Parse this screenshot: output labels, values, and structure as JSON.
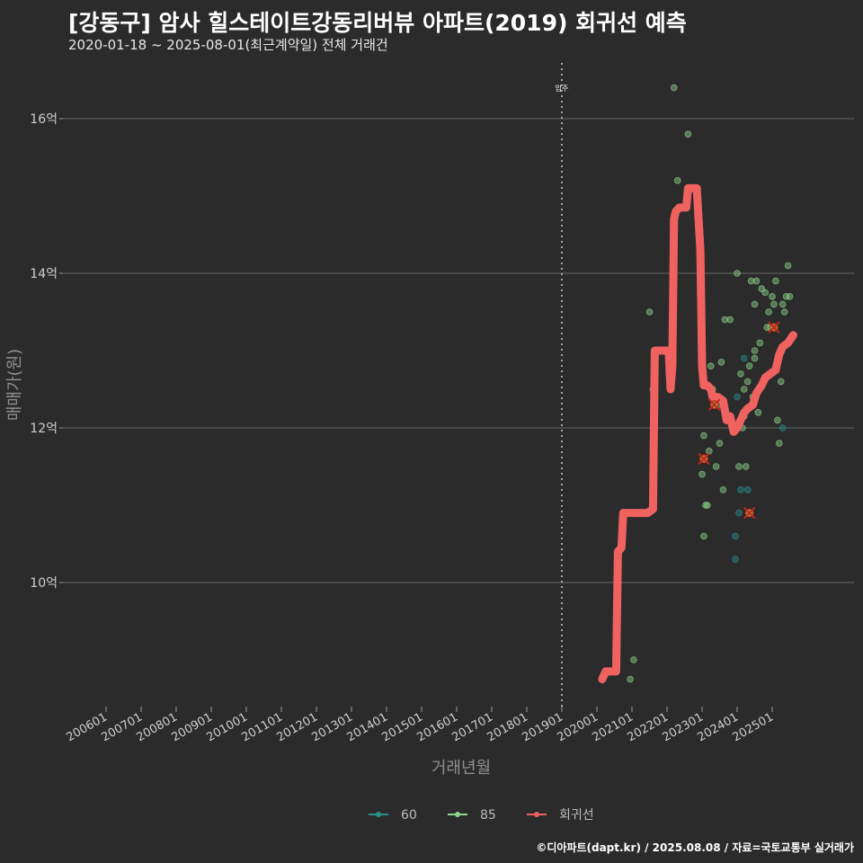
{
  "header": {
    "title": "[강동구] 암사 힐스테이트강동리버뷰 아파트(2019) 회귀선 예측",
    "subtitle": "2020-01-18 ~ 2025-08-01(최근계약일) 전체 거래건",
    "caption": "©디아파트(dapt.kr) / 2025.08.08 / 자료=국토교통부 실거래가"
  },
  "colors": {
    "background": "#2b2b2c",
    "grid": "#5a5a5a",
    "regression": "#f0625f",
    "size60": "#2a8f8f",
    "size85": "#8fd68a",
    "move_in_line": "#cccccc"
  },
  "chart_data": {
    "type": "scatter",
    "xlabel": "거래년월",
    "ylabel": "매매가(원)",
    "y_ticks": [
      {
        "value": 10,
        "label": "10억"
      },
      {
        "value": 12,
        "label": "12억"
      },
      {
        "value": 14,
        "label": "14억"
      },
      {
        "value": 16,
        "label": "16억"
      }
    ],
    "ylim": [
      8.4,
      16.7
    ],
    "xlim": [
      2005.0,
      2025.8
    ],
    "x_ticks": [
      "200601",
      "200701",
      "200801",
      "200901",
      "201001",
      "201101",
      "201201",
      "201301",
      "201401",
      "201501",
      "201601",
      "201701",
      "201801",
      "201901",
      "202001",
      "202101",
      "202201",
      "202301",
      "202401",
      "202501"
    ],
    "annotation": {
      "label": "입주",
      "x": 2019.0
    },
    "legend": {
      "position": "bottom",
      "items": [
        {
          "name": "60",
          "color": "#2a8f8f"
        },
        {
          "name": "85",
          "color": "#8fd68a"
        },
        {
          "name": "회귀선",
          "color": "#f0625f"
        }
      ]
    },
    "series": [
      {
        "name": "60",
        "points": [
          [
            2023.95,
            10.3
          ],
          [
            2023.95,
            10.6
          ],
          [
            2024.05,
            10.9
          ],
          [
            2024.1,
            11.2
          ],
          [
            2024.3,
            11.2
          ],
          [
            2024.35,
            10.9
          ],
          [
            2025.3,
            12.0
          ],
          [
            2024.0,
            12.4
          ],
          [
            2024.2,
            12.9
          ]
        ]
      },
      {
        "name": "85",
        "points": [
          [
            2020.95,
            8.75
          ],
          [
            2021.05,
            9.0
          ],
          [
            2021.5,
            13.5
          ],
          [
            2021.6,
            12.5
          ],
          [
            2022.05,
            13.0
          ],
          [
            2022.2,
            16.4
          ],
          [
            2022.3,
            15.2
          ],
          [
            2022.6,
            15.8
          ],
          [
            2023.0,
            11.4
          ],
          [
            2023.05,
            11.9
          ],
          [
            2023.1,
            11.0
          ],
          [
            2023.15,
            11.0
          ],
          [
            2023.05,
            10.6
          ],
          [
            2023.2,
            11.7
          ],
          [
            2023.25,
            12.8
          ],
          [
            2023.3,
            12.5
          ],
          [
            2023.4,
            11.5
          ],
          [
            2023.45,
            12.3
          ],
          [
            2023.5,
            11.8
          ],
          [
            2023.55,
            12.85
          ],
          [
            2023.6,
            11.2
          ],
          [
            2023.65,
            13.4
          ],
          [
            2023.8,
            13.4
          ],
          [
            2023.9,
            12.0
          ],
          [
            2024.0,
            14.0
          ],
          [
            2024.05,
            11.5
          ],
          [
            2024.1,
            12.7
          ],
          [
            2024.15,
            12.0
          ],
          [
            2024.2,
            12.5
          ],
          [
            2024.25,
            11.5
          ],
          [
            2024.3,
            12.6
          ],
          [
            2024.35,
            12.8
          ],
          [
            2024.4,
            13.9
          ],
          [
            2024.45,
            12.4
          ],
          [
            2024.5,
            13.0
          ],
          [
            2024.5,
            13.6
          ],
          [
            2024.55,
            13.9
          ],
          [
            2024.6,
            12.2
          ],
          [
            2024.65,
            13.1
          ],
          [
            2024.7,
            13.8
          ],
          [
            2024.8,
            13.75
          ],
          [
            2024.85,
            13.3
          ],
          [
            2024.9,
            13.5
          ],
          [
            2024.95,
            13.3
          ],
          [
            2025.0,
            13.7
          ],
          [
            2025.05,
            13.6
          ],
          [
            2025.1,
            13.9
          ],
          [
            2025.15,
            12.1
          ],
          [
            2025.2,
            11.8
          ],
          [
            2025.25,
            12.6
          ],
          [
            2025.3,
            13.6
          ],
          [
            2025.35,
            13.5
          ],
          [
            2025.4,
            13.7
          ],
          [
            2025.45,
            14.1
          ],
          [
            2025.5,
            13.7
          ],
          [
            2024.5,
            12.9
          ],
          [
            2024.2,
            12.15
          ]
        ]
      }
    ],
    "highlight_points": [
      [
        2023.05,
        11.6
      ],
      [
        2023.35,
        12.3
      ],
      [
        2024.35,
        10.9
      ],
      [
        2025.05,
        13.3
      ]
    ],
    "regression": [
      [
        2020.15,
        8.75
      ],
      [
        2020.25,
        8.85
      ],
      [
        2020.55,
        8.85
      ],
      [
        2020.6,
        10.4
      ],
      [
        2020.7,
        10.45
      ],
      [
        2020.75,
        10.9
      ],
      [
        2021.45,
        10.9
      ],
      [
        2021.6,
        10.95
      ],
      [
        2021.65,
        13.0
      ],
      [
        2022.05,
        13.0
      ],
      [
        2022.1,
        12.5
      ],
      [
        2022.15,
        12.8
      ],
      [
        2022.2,
        14.7
      ],
      [
        2022.25,
        14.8
      ],
      [
        2022.35,
        14.85
      ],
      [
        2022.55,
        14.85
      ],
      [
        2022.6,
        15.1
      ],
      [
        2022.85,
        15.1
      ],
      [
        2022.95,
        14.3
      ],
      [
        2023.0,
        12.8
      ],
      [
        2023.05,
        12.55
      ],
      [
        2023.15,
        12.55
      ],
      [
        2023.25,
        12.5
      ],
      [
        2023.3,
        12.4
      ],
      [
        2023.45,
        12.4
      ],
      [
        2023.6,
        12.35
      ],
      [
        2023.7,
        12.1
      ],
      [
        2023.8,
        12.15
      ],
      [
        2023.9,
        11.95
      ],
      [
        2024.0,
        12.0
      ],
      [
        2024.1,
        12.1
      ],
      [
        2024.2,
        12.2
      ],
      [
        2024.3,
        12.25
      ],
      [
        2024.45,
        12.3
      ],
      [
        2024.55,
        12.45
      ],
      [
        2024.7,
        12.55
      ],
      [
        2024.8,
        12.65
      ],
      [
        2024.95,
        12.7
      ],
      [
        2025.1,
        12.75
      ],
      [
        2025.2,
        12.95
      ],
      [
        2025.3,
        13.05
      ],
      [
        2025.45,
        13.1
      ],
      [
        2025.6,
        13.2
      ]
    ]
  }
}
